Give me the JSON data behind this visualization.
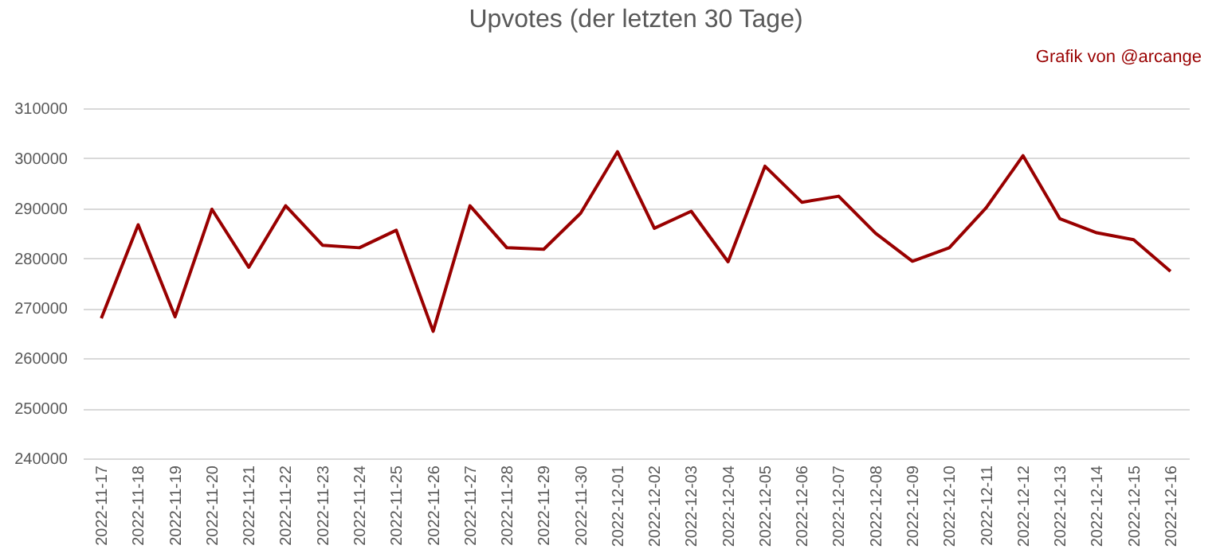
{
  "chart_data": {
    "type": "line",
    "title": "Upvotes (der letzten 30 Tage)",
    "annotations": [
      "Grafik von @arcange"
    ],
    "categories": [
      "2022-11-17",
      "2022-11-18",
      "2022-11-19",
      "2022-11-20",
      "2022-11-21",
      "2022-11-22",
      "2022-11-23",
      "2022-11-24",
      "2022-11-25",
      "2022-11-26",
      "2022-11-27",
      "2022-11-28",
      "2022-11-29",
      "2022-11-30",
      "2022-12-01",
      "2022-12-02",
      "2022-12-03",
      "2022-12-04",
      "2022-12-05",
      "2022-12-06",
      "2022-12-07",
      "2022-12-08",
      "2022-12-09",
      "2022-12-10",
      "2022-12-11",
      "2022-12-12",
      "2022-12-13",
      "2022-12-14",
      "2022-12-15",
      "2022-12-16"
    ],
    "series": [
      {
        "color": "#990000",
        "values": [
          268000,
          286700,
          268300,
          289800,
          278200,
          290500,
          282600,
          282100,
          285600,
          265400,
          290500,
          282100,
          281800,
          289000,
          301300,
          286000,
          289400,
          279300,
          298400,
          291200,
          292400,
          285000,
          279400,
          282100,
          290100,
          300500,
          287900,
          285100,
          283700,
          277400
        ]
      }
    ],
    "ylim": [
      240000,
      310000
    ],
    "yticks": [
      240000,
      250000,
      260000,
      270000,
      280000,
      290000,
      300000,
      310000
    ],
    "grid": "y",
    "marker": "none",
    "line_style": "solid"
  }
}
